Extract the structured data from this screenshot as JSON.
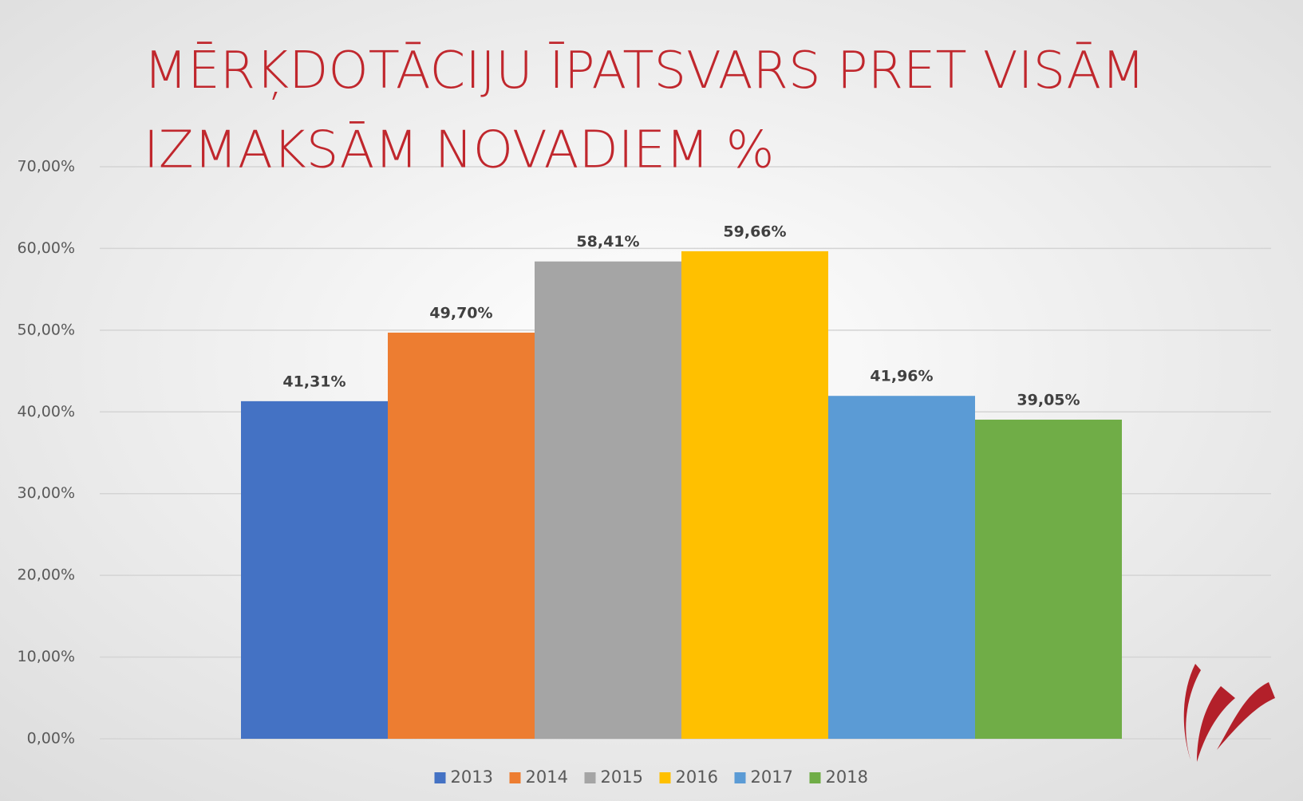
{
  "chart_data": {
    "type": "bar",
    "title": "MĒRĶDOTĀCIJU ĪPATSVARS PRET VISĀM IZMAKSĀM NOVADIEM %",
    "categories": [
      null
    ],
    "series": [
      {
        "name": "2013",
        "color": "#4472c4",
        "values": [
          41.31
        ],
        "value_labels": [
          "41,31%"
        ]
      },
      {
        "name": "2014",
        "color": "#ed7d31",
        "values": [
          49.7
        ],
        "value_labels": [
          "49,70%"
        ]
      },
      {
        "name": "2015",
        "color": "#a5a5a5",
        "values": [
          58.41
        ],
        "value_labels": [
          "58,41%"
        ]
      },
      {
        "name": "2016",
        "color": "#ffc000",
        "values": [
          59.66
        ],
        "value_labels": [
          "59,66%"
        ]
      },
      {
        "name": "2017",
        "color": "#5b9bd5",
        "values": [
          41.96
        ],
        "value_labels": [
          "41,96%"
        ]
      },
      {
        "name": "2018",
        "color": "#70ad47",
        "values": [
          39.05
        ],
        "value_labels": [
          "39,05%"
        ]
      }
    ],
    "ylim": [
      0,
      70
    ],
    "yticks": [
      {
        "value": 0,
        "label": "0,00%"
      },
      {
        "value": 10,
        "label": "10,00%"
      },
      {
        "value": 20,
        "label": "20,00%"
      },
      {
        "value": 30,
        "label": "30,00%"
      },
      {
        "value": 40,
        "label": "40,00%"
      },
      {
        "value": 50,
        "label": "50,00%"
      },
      {
        "value": 60,
        "label": "60,00%"
      },
      {
        "value": 70,
        "label": "70,00%"
      }
    ],
    "grid": true,
    "legend": "bottom"
  }
}
